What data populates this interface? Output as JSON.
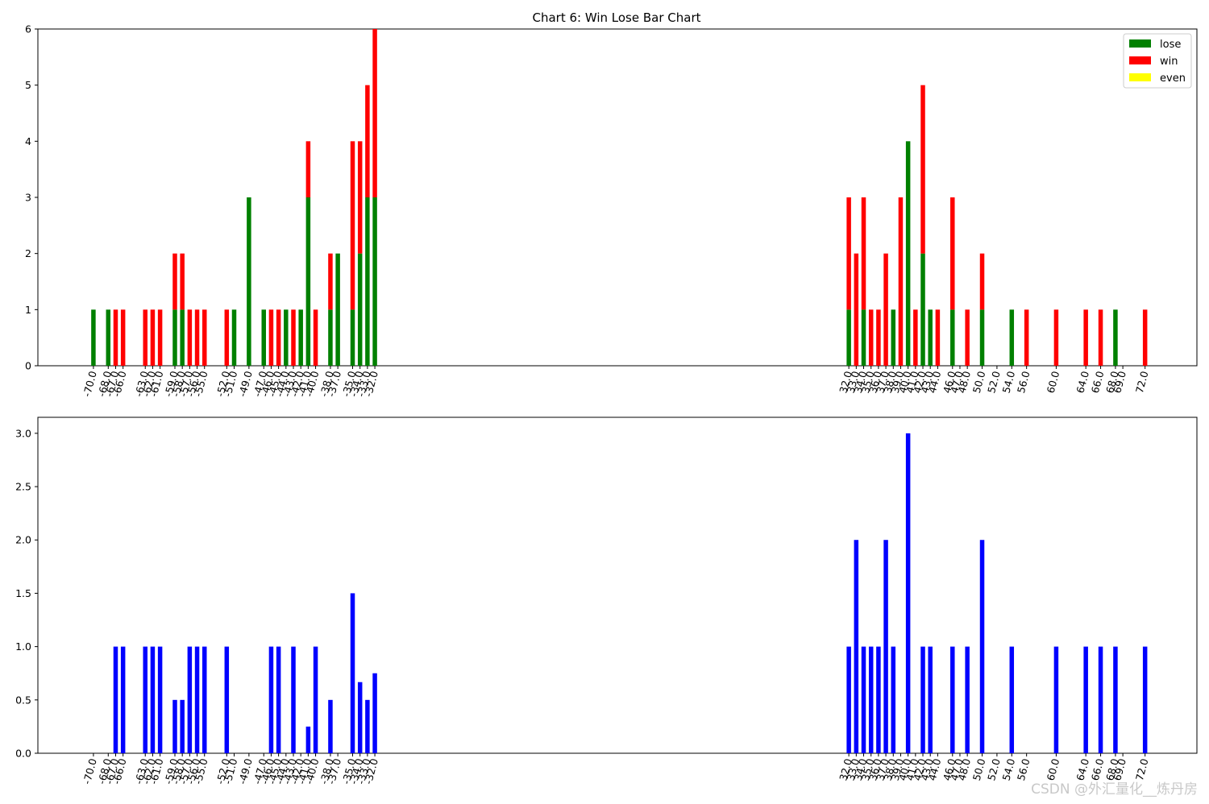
{
  "watermark": "CSDN @外汇量化__炼丹房",
  "chart_data": [
    {
      "type": "bar",
      "stacked": true,
      "title": "Chart 6: Win Lose Bar Chart",
      "x": [
        -70,
        -68,
        -67,
        -66,
        -63,
        -62,
        -61,
        -59,
        -58,
        -57,
        -56,
        -55,
        -52,
        -51,
        -49,
        -47,
        -46,
        -45,
        -44,
        -43,
        -42,
        -41,
        -40,
        -38,
        -37,
        -35,
        -34,
        -33,
        -32,
        32,
        33,
        34,
        35,
        36,
        37,
        38,
        39,
        40,
        41,
        42,
        43,
        44,
        46,
        47,
        48,
        50,
        52,
        54,
        56,
        60,
        64,
        66,
        68,
        69,
        72
      ],
      "xticklabels": [
        "-70.0",
        "-68.0",
        "-67.0",
        "-66.0",
        "-63.0",
        "-62.0",
        "-61.0",
        "-59.0",
        "-58.0",
        "-57.0",
        "-56.0",
        "-55.0",
        "-52.0",
        "-51.0",
        "-49.0",
        "-47.0",
        "-46.0",
        "-45.0",
        "-44.0",
        "-43.0",
        "-42.0",
        "-41.0",
        "-40.0",
        "-38.0",
        "-37.0",
        "-35.0",
        "-34.0",
        "-33.0",
        "-32.0",
        "32.0",
        "33.0",
        "34.0",
        "35.0",
        "36.0",
        "37.0",
        "38.0",
        "39.0",
        "40.0",
        "41.0",
        "42.0",
        "43.0",
        "44.0",
        "46.0",
        "47.0",
        "48.0",
        "50.0",
        "52.0",
        "54.0",
        "56.0",
        "60.0",
        "64.0",
        "66.0",
        "68.0",
        "69.0",
        "72.0"
      ],
      "series": [
        {
          "name": "lose",
          "color": "#008000",
          "values": [
            1,
            1,
            0,
            0,
            0,
            0,
            0,
            1,
            1,
            0,
            0,
            0,
            0,
            1,
            3,
            1,
            0,
            0,
            1,
            0,
            1,
            3,
            0,
            1,
            2,
            1,
            2,
            3,
            3,
            1,
            0,
            1,
            0,
            0,
            0,
            1,
            0,
            4,
            0,
            2,
            1,
            0,
            1,
            0,
            0,
            1,
            0,
            1,
            0,
            0,
            0,
            0,
            1,
            0,
            0
          ]
        },
        {
          "name": "win",
          "color": "#ff0000",
          "values": [
            0,
            0,
            1,
            1,
            1,
            1,
            1,
            1,
            1,
            1,
            1,
            1,
            1,
            0,
            0,
            0,
            1,
            1,
            0,
            1,
            0,
            1,
            1,
            1,
            0,
            3,
            2,
            2,
            3,
            2,
            2,
            2,
            1,
            1,
            2,
            0,
            3,
            0,
            1,
            3,
            0,
            1,
            2,
            0,
            1,
            1,
            0,
            0,
            1,
            1,
            1,
            1,
            0,
            0,
            1
          ]
        },
        {
          "name": "even",
          "color": "#ffff00",
          "values": [
            0,
            0,
            0,
            0,
            0,
            0,
            0,
            0,
            0,
            0,
            0,
            0,
            0,
            0,
            0,
            0,
            0,
            0,
            0,
            0,
            0,
            0,
            0,
            0,
            0,
            0,
            0,
            0,
            0,
            0,
            0,
            0,
            0,
            0,
            0,
            0,
            0,
            0,
            0,
            0,
            0,
            0,
            0,
            0,
            0,
            0,
            0,
            0,
            0,
            0,
            0,
            0,
            0,
            0,
            0
          ]
        }
      ],
      "yticks": [
        "0",
        "1",
        "2",
        "3",
        "4",
        "5",
        "6"
      ],
      "ylim": [
        0,
        6
      ],
      "legend": "upper right"
    },
    {
      "type": "bar",
      "color": "#0000ff",
      "x": [
        -70,
        -68,
        -67,
        -66,
        -63,
        -62,
        -61,
        -59,
        -58,
        -57,
        -56,
        -55,
        -52,
        -51,
        -49,
        -47,
        -46,
        -45,
        -44,
        -43,
        -42,
        -41,
        -40,
        -38,
        -37,
        -35,
        -34,
        -33,
        -32,
        32,
        33,
        34,
        35,
        36,
        37,
        38,
        39,
        40,
        41,
        42,
        43,
        44,
        46,
        47,
        48,
        50,
        52,
        54,
        56,
        60,
        64,
        66,
        68,
        69,
        72
      ],
      "xticklabels": [
        "-70.0",
        "-68.0",
        "-67.0",
        "-66.0",
        "-63.0",
        "-62.0",
        "-61.0",
        "-59.0",
        "-58.0",
        "-57.0",
        "-56.0",
        "-55.0",
        "-52.0",
        "-51.0",
        "-49.0",
        "-47.0",
        "-46.0",
        "-45.0",
        "-44.0",
        "-43.0",
        "-42.0",
        "-41.0",
        "-40.0",
        "-38.0",
        "-37.0",
        "-35.0",
        "-34.0",
        "-33.0",
        "-32.0",
        "32.0",
        "33.0",
        "34.0",
        "35.0",
        "36.0",
        "37.0",
        "38.0",
        "39.0",
        "40.0",
        "41.0",
        "42.0",
        "43.0",
        "44.0",
        "46.0",
        "47.0",
        "48.0",
        "50.0",
        "52.0",
        "54.0",
        "56.0",
        "60.0",
        "64.0",
        "66.0",
        "68.0",
        "69.0",
        "72.0"
      ],
      "values": [
        0,
        0,
        1,
        1,
        1,
        1,
        1,
        0.5,
        0.5,
        1,
        1,
        1,
        1,
        0,
        0,
        0,
        1,
        1,
        0,
        1,
        0,
        0.25,
        1,
        0.5,
        0,
        1.5,
        0.667,
        0.5,
        0.75,
        1,
        2,
        1,
        1,
        1,
        2,
        1,
        0,
        3,
        0,
        1,
        1,
        0,
        1,
        0,
        1,
        2,
        0,
        1,
        0,
        1,
        1,
        1,
        1,
        0,
        1
      ],
      "yticks": [
        "0.0",
        "0.5",
        "1.0",
        "1.5",
        "2.0",
        "2.5",
        "3.0"
      ],
      "ylim": [
        0,
        3.15
      ]
    }
  ]
}
